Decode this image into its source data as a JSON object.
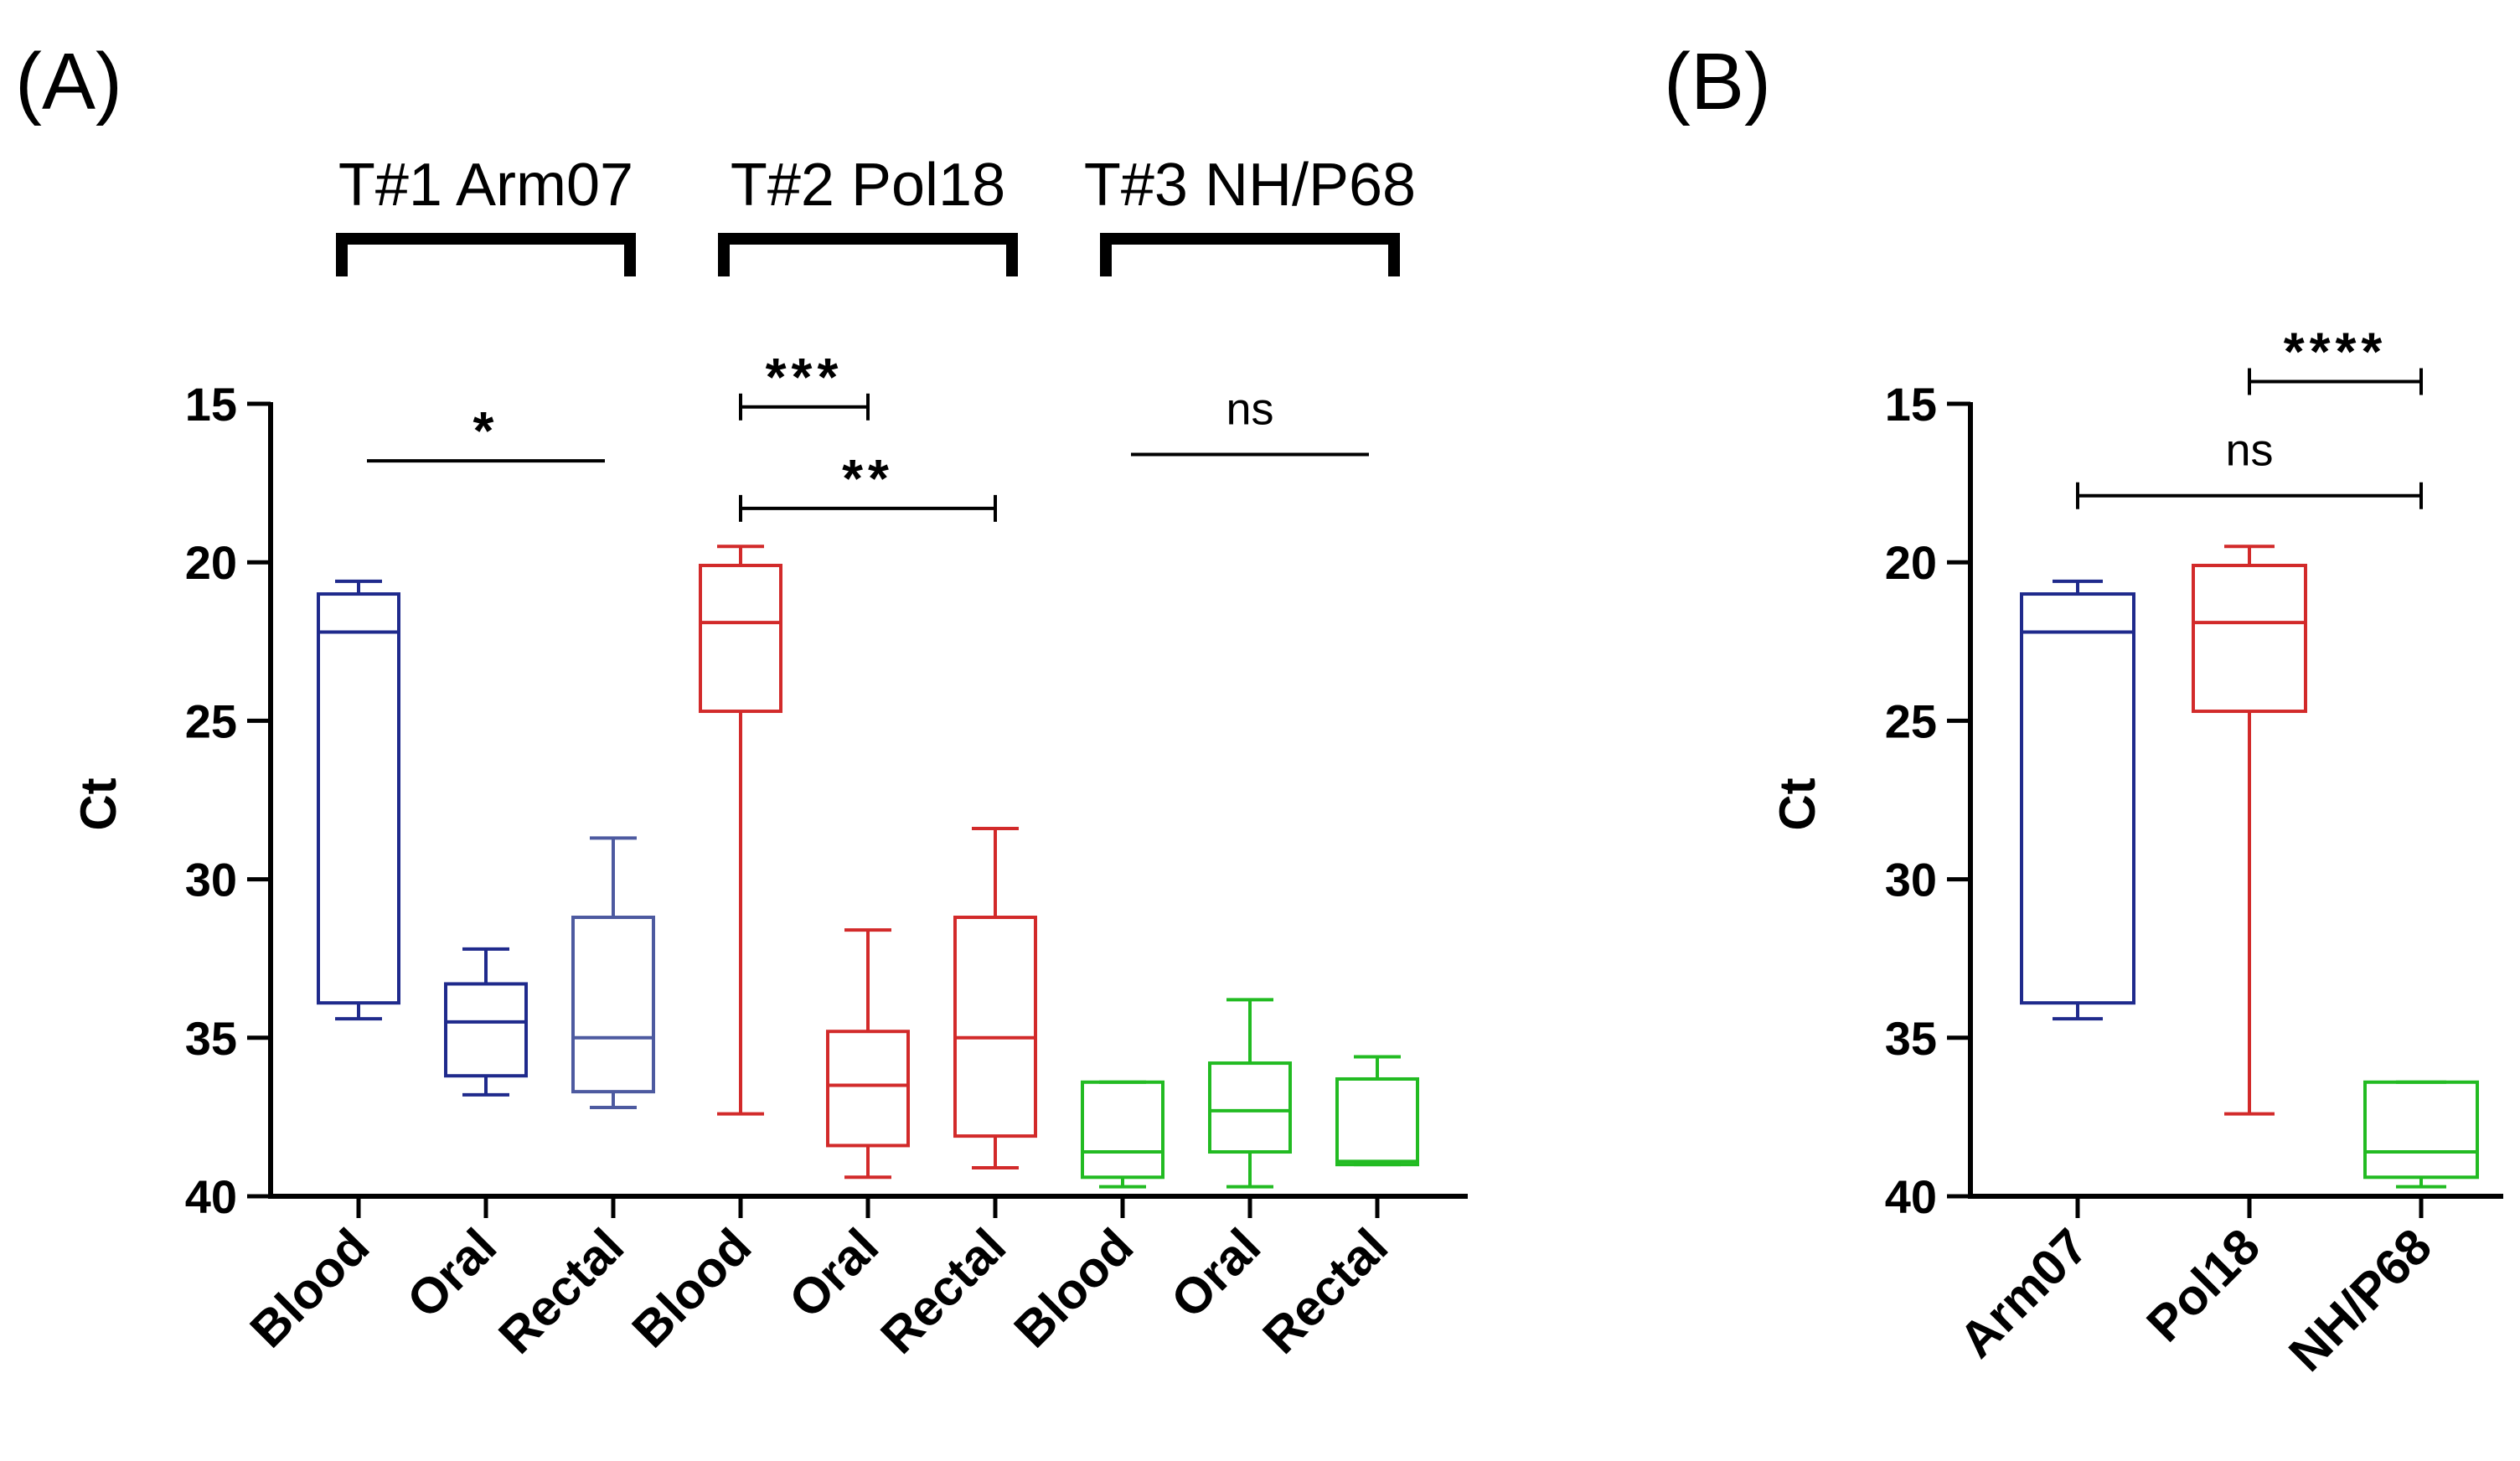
{
  "colors": {
    "navy": "#1f2a8c",
    "slate": "#4d5aa0",
    "red": "#d22a2a",
    "green": "#22bb22",
    "black": "#000000"
  },
  "chart_data": [
    {
      "panel": "(A)",
      "type": "box",
      "ylabel": "Ct",
      "ylim": [
        40,
        15
      ],
      "y_inverted": true,
      "yticks": [
        "15",
        "20",
        "25",
        "30",
        "35",
        "40"
      ],
      "categories": [
        "Blood",
        "Oral",
        "Rectal",
        "Blood",
        "Oral",
        "Rectal",
        "Blood",
        "Oral",
        "Rectal"
      ],
      "groups": [
        {
          "label": "T#1 Arm07",
          "categories": [
            0,
            2
          ]
        },
        {
          "label": "T#2 Pol18",
          "categories": [
            3,
            5
          ]
        },
        {
          "label": "T#3 NH/P68",
          "categories": [
            6,
            8
          ]
        }
      ],
      "boxes": [
        {
          "category": "Blood",
          "group": "T#1 Arm07",
          "color": "navy",
          "min": 20.6,
          "q1": 21.0,
          "median": 22.2,
          "q3": 33.9,
          "max": 34.4
        },
        {
          "category": "Oral",
          "group": "T#1 Arm07",
          "color": "navy",
          "min": 32.2,
          "q1": 33.3,
          "median": 34.5,
          "q3": 36.2,
          "max": 36.8
        },
        {
          "category": "Rectal",
          "group": "T#1 Arm07",
          "color": "slate",
          "min": 28.7,
          "q1": 31.2,
          "median": 35.0,
          "q3": 36.7,
          "max": 37.2
        },
        {
          "category": "Blood",
          "group": "T#2 Pol18",
          "color": "red",
          "min": 19.5,
          "q1": 20.1,
          "median": 21.9,
          "q3": 24.7,
          "max": 37.4
        },
        {
          "category": "Oral",
          "group": "T#2 Pol18",
          "color": "red",
          "min": 31.6,
          "q1": 34.8,
          "median": 36.5,
          "q3": 38.4,
          "max": 39.4
        },
        {
          "category": "Rectal",
          "group": "T#2 Pol18",
          "color": "red",
          "min": 28.4,
          "q1": 31.2,
          "median": 35.0,
          "q3": 38.1,
          "max": 39.1
        },
        {
          "category": "Blood",
          "group": "T#3 NH/P68",
          "color": "green",
          "min": 36.4,
          "q1": 36.4,
          "median": 38.6,
          "q3": 39.4,
          "max": 39.7
        },
        {
          "category": "Oral",
          "group": "T#3 NH/P68",
          "color": "green",
          "min": 33.8,
          "q1": 35.8,
          "median": 37.3,
          "q3": 38.6,
          "max": 39.7
        },
        {
          "category": "Rectal",
          "group": "T#3 NH/P68",
          "color": "green",
          "min": 35.6,
          "q1": 36.3,
          "median": 38.9,
          "q3": 39.0,
          "max": 39.0
        }
      ],
      "annotations": [
        {
          "label": "*",
          "from": 0,
          "to": 2,
          "y": 16.8,
          "style": "line"
        },
        {
          "label": "***",
          "from": 3,
          "to": 4,
          "y": 15.1,
          "style": "bracket"
        },
        {
          "label": "**",
          "from": 3,
          "to": 5,
          "y": 18.3,
          "style": "bracket"
        },
        {
          "label": "ns",
          "from": 6,
          "to": 8,
          "y": 16.6,
          "style": "line"
        }
      ]
    },
    {
      "panel": "(B)",
      "type": "box",
      "ylabel": "Ct",
      "ylim": [
        40,
        15
      ],
      "y_inverted": true,
      "yticks": [
        "15",
        "20",
        "25",
        "30",
        "35",
        "40"
      ],
      "categories": [
        "Arm07",
        "Pol18",
        "NH/P68"
      ],
      "boxes": [
        {
          "category": "Arm07",
          "color": "navy",
          "min": 20.6,
          "q1": 21.0,
          "median": 22.2,
          "q3": 33.9,
          "max": 34.4
        },
        {
          "category": "Pol18",
          "color": "red",
          "min": 19.5,
          "q1": 20.1,
          "median": 21.9,
          "q3": 24.7,
          "max": 37.4
        },
        {
          "category": "NH/P68",
          "color": "green",
          "min": 36.4,
          "q1": 36.4,
          "median": 38.6,
          "q3": 39.4,
          "max": 39.7
        }
      ],
      "annotations": [
        {
          "label": "****",
          "from": 1,
          "to": 2,
          "y": 14.3,
          "style": "bracket"
        },
        {
          "label": "ns",
          "from": 0,
          "to": 2,
          "y": 17.9,
          "style": "bracket"
        }
      ]
    }
  ]
}
